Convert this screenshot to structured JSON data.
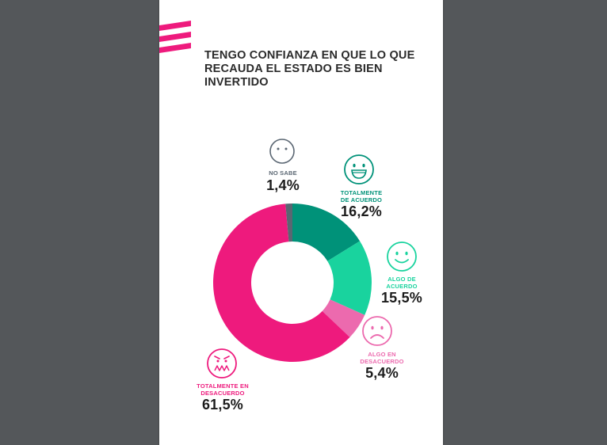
{
  "title_lines": [
    "TENGO CONFIANZA EN QUE LO QUE",
    "RECAUDA EL ESTADO ES BIEN",
    "INVERTIDO"
  ],
  "colors": {
    "totalmente_acuerdo": "#009279",
    "algo_acuerdo": "#19d39e",
    "algo_desacuerdo": "#ec6aae",
    "totalmente_desacuerdo": "#ee1a7d",
    "no_sabe": "#5a6672",
    "brand": "#ee1a7d"
  },
  "chart_data": {
    "type": "pie",
    "title": "TENGO CONFIANZA EN QUE LO QUE RECAUDA EL ESTADO ES BIEN INVERTIDO",
    "slices": [
      {
        "label": "TOTALMENTE DE ACUERDO",
        "value": 16.2,
        "display": "16,2%",
        "color": "#009279",
        "icon": "very-happy-face-icon"
      },
      {
        "label": "ALGO DE ACUERDO",
        "value": 15.5,
        "display": "15,5%",
        "color": "#19d39e",
        "icon": "smiling-face-icon"
      },
      {
        "label": "ALGO EN DESACUERDO",
        "value": 5.4,
        "display": "5,4%",
        "color": "#ec6aae",
        "icon": "frowning-face-icon"
      },
      {
        "label": "TOTALMENTE EN DESACUERDO",
        "value": 61.5,
        "display": "61,5%",
        "color": "#ee1a7d",
        "icon": "angry-face-icon"
      },
      {
        "label": "NO SABE",
        "value": 1.4,
        "display": "1,4%",
        "color": "#5a6672",
        "icon": "neutral-face-icon"
      }
    ]
  },
  "labels": {
    "no_sabe": {
      "lines": [
        "NO SABE"
      ],
      "pct": "1,4%"
    },
    "totalmente_acuerdo": {
      "lines": [
        "TOTALMENTE",
        "DE ACUERDO"
      ],
      "pct": "16,2%"
    },
    "algo_acuerdo": {
      "lines": [
        "ALGO DE",
        "ACUERDO"
      ],
      "pct": "15,5%"
    },
    "algo_desacuerdo": {
      "lines": [
        "ALGO EN",
        "DESACUERDO"
      ],
      "pct": "5,4%"
    },
    "totalmente_desacuerdo": {
      "lines": [
        "TOTALMENTE EN",
        "DESACUERDO"
      ],
      "pct": "61,5%"
    }
  }
}
